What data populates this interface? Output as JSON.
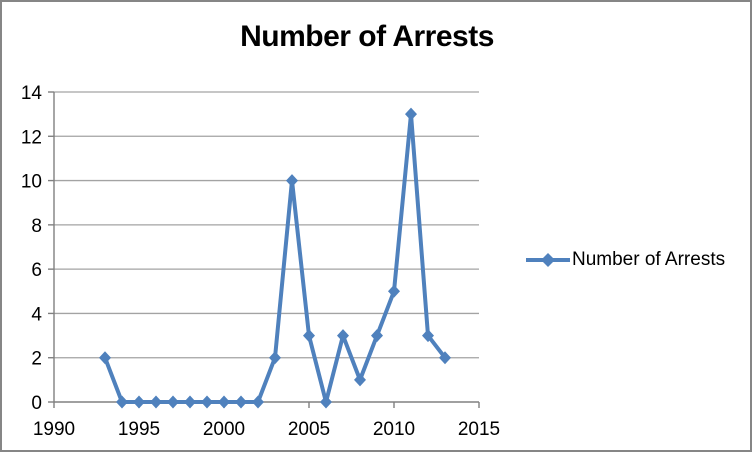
{
  "window": {
    "background_color": "#ffffff",
    "border_color": "#868686"
  },
  "chart": {
    "title": "Number of Arrests",
    "legend": {
      "label": "Number of Arrests",
      "position": "right"
    }
  },
  "chart_data": {
    "type": "line",
    "title": "Number of Arrests",
    "xlabel": "",
    "ylabel": "",
    "series": [
      {
        "name": "Number of Arrests",
        "x": [
          1993,
          1994,
          1995,
          1996,
          1997,
          1998,
          1999,
          2000,
          2001,
          2002,
          2003,
          2004,
          2005,
          2006,
          2007,
          2008,
          2009,
          2010,
          2011,
          2012,
          2013
        ],
        "values": [
          2,
          0,
          0,
          0,
          0,
          0,
          0,
          0,
          0,
          0,
          2,
          10,
          3,
          0,
          3,
          1,
          3,
          5,
          13,
          3,
          2
        ]
      }
    ],
    "x_ticks": [
      1990,
      1995,
      2000,
      2005,
      2010,
      2015
    ],
    "y_ticks": [
      0,
      2,
      4,
      6,
      8,
      10,
      12,
      14
    ],
    "xlim": [
      1990,
      2015
    ],
    "ylim": [
      0,
      14
    ],
    "grid": "horizontal",
    "legend_position": "right",
    "marker": "diamond",
    "line_color": "#4F81BD",
    "gridline_color": "#A3A3A3",
    "axis_color": "#808080",
    "text_color": "#000000"
  }
}
